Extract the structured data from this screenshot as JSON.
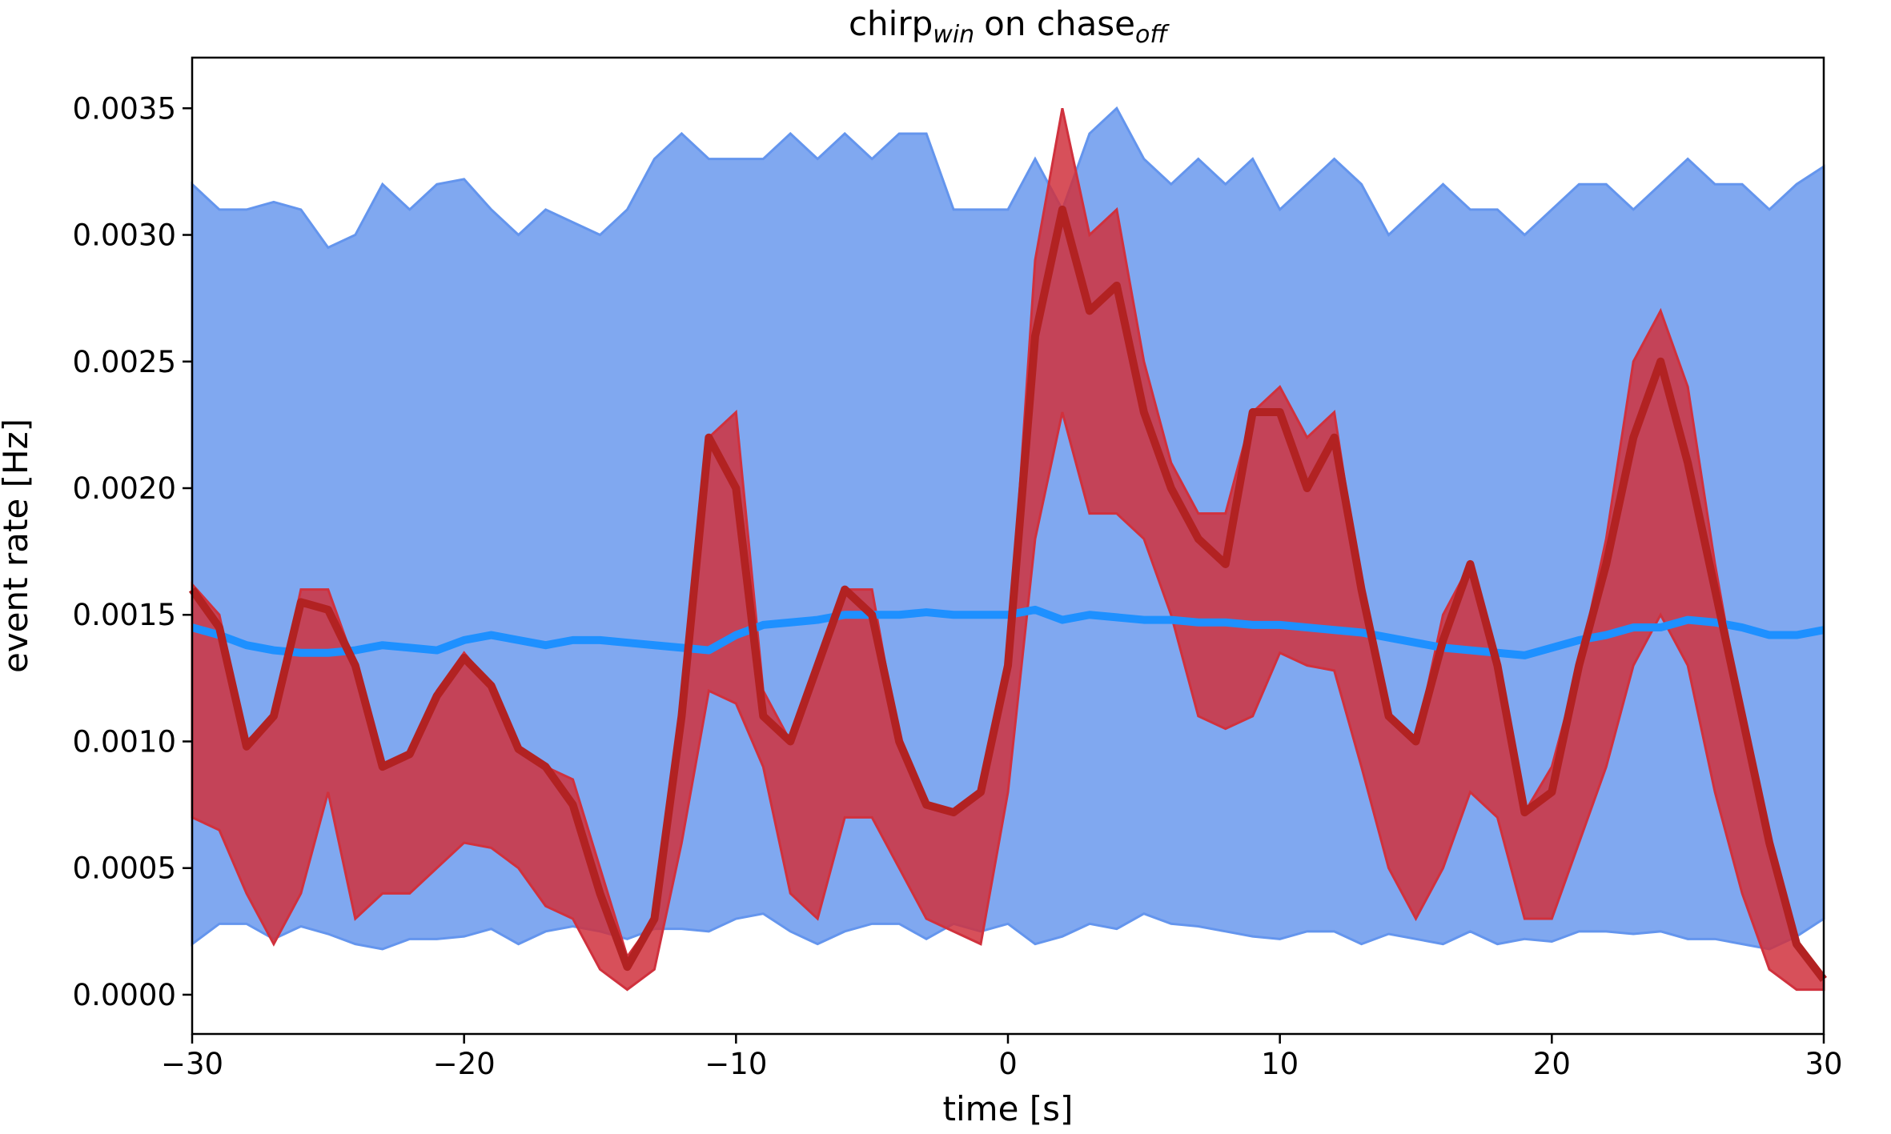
{
  "chart_data": {
    "type": "line",
    "title": [
      "chirp",
      "win",
      "on chase",
      "off"
    ],
    "xlabel": "time [s]",
    "ylabel": "event rate [Hz]",
    "x": [
      -30,
      -29,
      -28,
      -27,
      -26,
      -25,
      -24,
      -23,
      -22,
      -21,
      -20,
      -19,
      -18,
      -17,
      -16,
      -15,
      -14,
      -13,
      -12,
      -11,
      -10,
      -9,
      -8,
      -7,
      -6,
      -5,
      -4,
      -3,
      -2,
      -1,
      0,
      1,
      2,
      3,
      4,
      5,
      6,
      7,
      8,
      9,
      10,
      11,
      12,
      13,
      14,
      15,
      16,
      17,
      18,
      19,
      20,
      21,
      22,
      23,
      24,
      25,
      26,
      27,
      28,
      29,
      30
    ],
    "bands": [
      {
        "color": "#6495ed",
        "opacity": 0.82,
        "upper": [
          0.0032,
          0.0031,
          0.0031,
          0.00313,
          0.0031,
          0.00295,
          0.003,
          0.0032,
          0.0031,
          0.0032,
          0.00322,
          0.0031,
          0.003,
          0.0031,
          0.00305,
          0.003,
          0.0031,
          0.0033,
          0.0034,
          0.0033,
          0.0033,
          0.0033,
          0.0034,
          0.0033,
          0.0034,
          0.0033,
          0.0034,
          0.0034,
          0.0031,
          0.0031,
          0.0031,
          0.0033,
          0.0031,
          0.0034,
          0.0035,
          0.0033,
          0.0032,
          0.0033,
          0.0032,
          0.0033,
          0.0031,
          0.0032,
          0.0033,
          0.0032,
          0.003,
          0.0031,
          0.0032,
          0.0031,
          0.0031,
          0.003,
          0.0031,
          0.0032,
          0.0032,
          0.0031,
          0.0032,
          0.0033,
          0.0032,
          0.0032,
          0.0031,
          0.0032,
          0.00327
        ],
        "lower": [
          0.0002,
          0.00028,
          0.00028,
          0.00022,
          0.00027,
          0.00024,
          0.0002,
          0.00018,
          0.00022,
          0.00022,
          0.00023,
          0.00026,
          0.0002,
          0.00025,
          0.00027,
          0.00025,
          0.00022,
          0.00026,
          0.00026,
          0.00025,
          0.0003,
          0.00032,
          0.00025,
          0.0002,
          0.00025,
          0.00028,
          0.00028,
          0.00022,
          0.00028,
          0.00025,
          0.00028,
          0.0002,
          0.00023,
          0.00028,
          0.00026,
          0.00032,
          0.00028,
          0.00027,
          0.00025,
          0.00023,
          0.00022,
          0.00025,
          0.00025,
          0.0002,
          0.00024,
          0.00022,
          0.0002,
          0.00025,
          0.0002,
          0.00022,
          0.00021,
          0.00025,
          0.00025,
          0.00024,
          0.00025,
          0.00022,
          0.00022,
          0.0002,
          0.00018,
          0.00023,
          0.0003
        ]
      },
      {
        "color": "#d0313d",
        "opacity": 0.85,
        "upper": [
          0.00162,
          0.0015,
          0.001,
          0.0011,
          0.0016,
          0.0016,
          0.0013,
          0.0009,
          0.00095,
          0.0012,
          0.00135,
          0.00122,
          0.00098,
          0.0009,
          0.00085,
          0.0005,
          0.00015,
          0.0003,
          0.0011,
          0.0022,
          0.0023,
          0.0012,
          0.001,
          0.0013,
          0.0016,
          0.0016,
          0.001,
          0.00075,
          0.00072,
          0.0008,
          0.0013,
          0.0029,
          0.0035,
          0.003,
          0.0031,
          0.0025,
          0.0021,
          0.0019,
          0.0019,
          0.0023,
          0.0024,
          0.0022,
          0.0023,
          0.0016,
          0.0011,
          0.001,
          0.0015,
          0.0017,
          0.0013,
          0.00072,
          0.0009,
          0.0013,
          0.0018,
          0.0025,
          0.0027,
          0.0024,
          0.0017,
          0.0011,
          0.0006,
          0.0002,
          6e-05
        ],
        "lower": [
          0.0007,
          0.00065,
          0.0004,
          0.0002,
          0.0004,
          0.0008,
          0.0003,
          0.0004,
          0.0004,
          0.0005,
          0.0006,
          0.00058,
          0.0005,
          0.00035,
          0.0003,
          0.0001,
          2e-05,
          0.0001,
          0.0006,
          0.0012,
          0.00115,
          0.0009,
          0.0004,
          0.0003,
          0.0007,
          0.0007,
          0.0005,
          0.0003,
          0.00025,
          0.0002,
          0.0008,
          0.0018,
          0.0023,
          0.0019,
          0.0019,
          0.0018,
          0.0015,
          0.0011,
          0.00105,
          0.0011,
          0.00135,
          0.0013,
          0.00128,
          0.0009,
          0.0005,
          0.0003,
          0.0005,
          0.0008,
          0.0007,
          0.0003,
          0.0003,
          0.0006,
          0.0009,
          0.0013,
          0.0015,
          0.0013,
          0.0008,
          0.0004,
          0.0001,
          2e-05,
          2e-05
        ]
      }
    ],
    "series": [
      {
        "color": "#1e90ff",
        "values": [
          0.00145,
          0.00142,
          0.00138,
          0.00136,
          0.00135,
          0.00135,
          0.00136,
          0.00138,
          0.00137,
          0.00136,
          0.0014,
          0.00142,
          0.0014,
          0.00138,
          0.0014,
          0.0014,
          0.00139,
          0.00138,
          0.00137,
          0.00136,
          0.00142,
          0.00146,
          0.00147,
          0.00148,
          0.0015,
          0.0015,
          0.0015,
          0.00151,
          0.0015,
          0.0015,
          0.0015,
          0.00152,
          0.00148,
          0.0015,
          0.00149,
          0.00148,
          0.00148,
          0.00147,
          0.00147,
          0.00146,
          0.00146,
          0.00145,
          0.00144,
          0.00143,
          0.00141,
          0.00139,
          0.00137,
          0.00136,
          0.00135,
          0.00134,
          0.00137,
          0.0014,
          0.00142,
          0.00145,
          0.00145,
          0.00148,
          0.00147,
          0.00145,
          0.00142,
          0.00142,
          0.00144
        ]
      },
      {
        "color": "#b22222",
        "values": [
          0.0016,
          0.00145,
          0.00098,
          0.0011,
          0.00155,
          0.00152,
          0.0013,
          0.0009,
          0.00095,
          0.00118,
          0.00133,
          0.00122,
          0.00097,
          0.0009,
          0.00075,
          0.0004,
          0.00011,
          0.0003,
          0.0011,
          0.0022,
          0.002,
          0.0011,
          0.001,
          0.0013,
          0.0016,
          0.0015,
          0.001,
          0.00075,
          0.00072,
          0.0008,
          0.0013,
          0.0026,
          0.0031,
          0.0027,
          0.0028,
          0.0023,
          0.002,
          0.0018,
          0.0017,
          0.0023,
          0.0023,
          0.002,
          0.0022,
          0.0016,
          0.0011,
          0.001,
          0.0014,
          0.0017,
          0.0013,
          0.00072,
          0.0008,
          0.0013,
          0.0017,
          0.0022,
          0.0025,
          0.0021,
          0.0016,
          0.0011,
          0.0006,
          0.0002,
          6e-05
        ]
      }
    ],
    "xlim": [
      -30,
      30
    ],
    "xticks": [
      {
        "value": -30,
        "label": "−30"
      },
      {
        "value": -20,
        "label": "−20"
      },
      {
        "value": -10,
        "label": "−10"
      },
      0,
      10,
      20,
      30
    ],
    "ylim": [
      -0.000155,
      0.0037
    ],
    "yticks": [
      {
        "value": 0,
        "label": "0.0000"
      },
      {
        "value": 0.0005,
        "label": "0.0005"
      },
      {
        "value": 0.001,
        "label": "0.0010"
      },
      {
        "value": 0.0015,
        "label": "0.0015"
      },
      {
        "value": 0.002,
        "label": "0.0020"
      },
      {
        "value": 0.0025,
        "label": "0.0025"
      },
      {
        "value": 0.003,
        "label": "0.0030"
      },
      {
        "value": 0.0035,
        "label": "0.0035"
      }
    ]
  }
}
